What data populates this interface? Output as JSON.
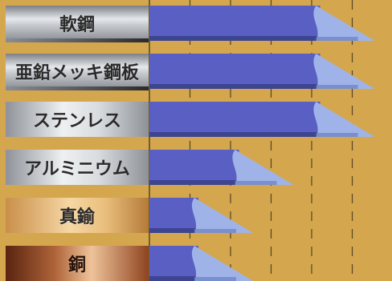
{
  "chart_data": {
    "type": "bar",
    "title": "",
    "xlabel": "",
    "ylabel": "",
    "categories": [
      "軟鋼",
      "亜鉛メッキ鋼板",
      "ステンレス",
      "アルミニウム",
      "真鍮",
      "銅"
    ],
    "values": [
      5,
      5,
      5,
      3,
      2,
      2
    ],
    "xlim": [
      0,
      6
    ],
    "grid": true,
    "colors": {
      "bar": "#5a5fc4",
      "bar_tip": "#9fb3e8",
      "bar_shadow": "#3d4490",
      "background": "#d4a74e",
      "grid": "#2b2416"
    }
  }
}
